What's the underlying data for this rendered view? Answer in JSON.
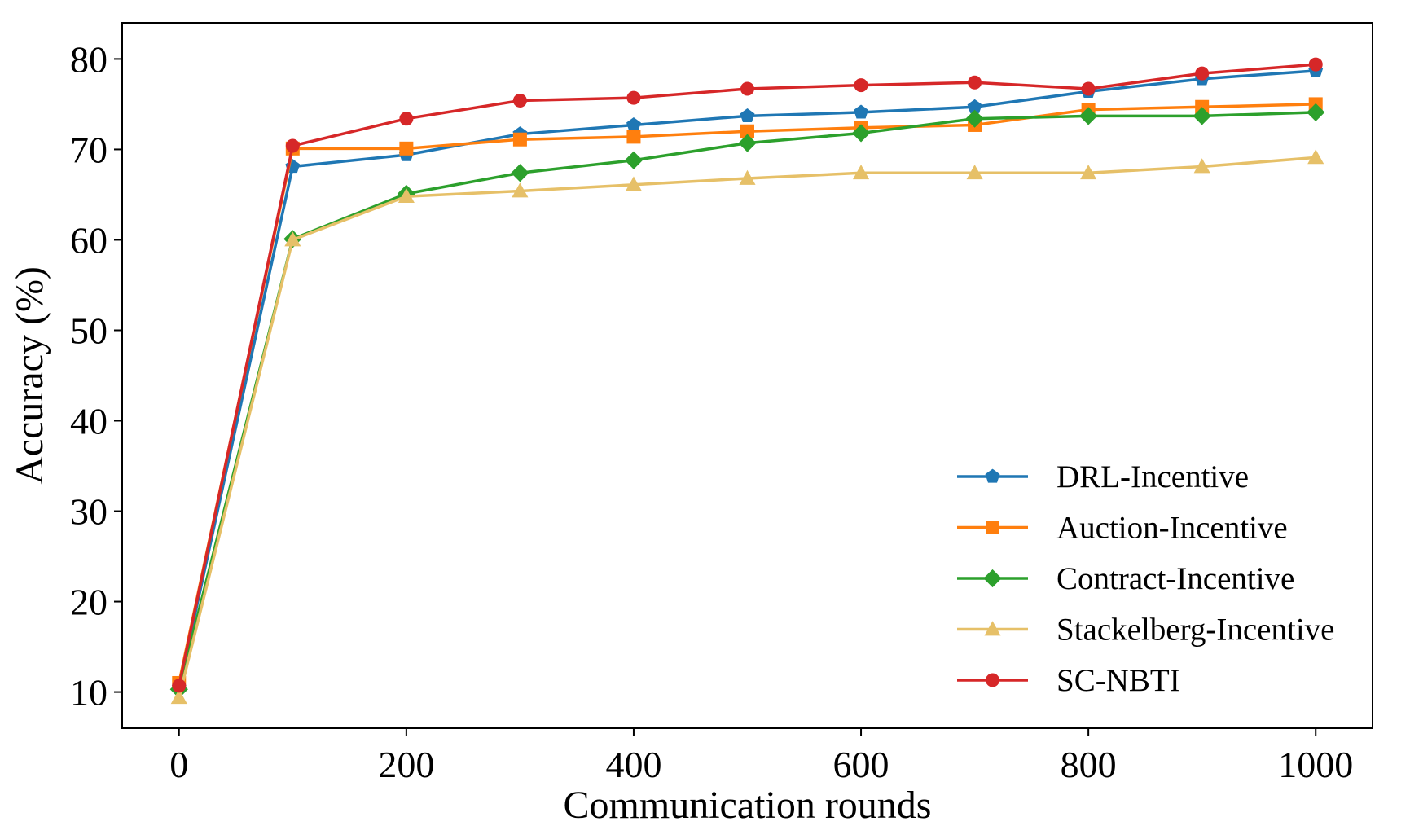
{
  "chart_data": {
    "type": "line",
    "title": "",
    "xlabel": "Communication rounds",
    "ylabel": "Accuracy (%)",
    "xlim": [
      -50,
      1050
    ],
    "ylim": [
      6,
      84
    ],
    "xticks": [
      0,
      200,
      400,
      600,
      800,
      1000
    ],
    "yticks": [
      10,
      20,
      30,
      40,
      50,
      60,
      70,
      80
    ],
    "xtick_labels": [
      "0",
      "200",
      "400",
      "600",
      "800",
      "1000"
    ],
    "ytick_labels": [
      "10",
      "20",
      "30",
      "40",
      "50",
      "60",
      "70",
      "80"
    ],
    "grid": false,
    "legend_position": "bottom-right",
    "x": [
      0,
      100,
      200,
      300,
      400,
      500,
      600,
      700,
      800,
      900,
      1000
    ],
    "series": [
      {
        "name": "DRL-Incentive",
        "color": "#1f77b4",
        "marker": "pentagon",
        "values": [
          10.5,
          68.1,
          69.4,
          71.7,
          72.7,
          73.7,
          74.1,
          74.7,
          76.4,
          77.8,
          78.7
        ]
      },
      {
        "name": "Auction-Incentive",
        "color": "#ff7f0e",
        "marker": "square",
        "values": [
          11.0,
          70.1,
          70.1,
          71.1,
          71.4,
          72.0,
          72.4,
          72.7,
          74.4,
          74.7,
          75.0
        ]
      },
      {
        "name": "Contract-Incentive",
        "color": "#2ca02c",
        "marker": "diamond",
        "values": [
          10.3,
          60.1,
          65.1,
          67.4,
          68.8,
          70.7,
          71.8,
          73.4,
          73.7,
          73.7,
          74.1
        ]
      },
      {
        "name": "Stackelberg-Incentive",
        "color": "#e6c068",
        "marker": "triangle",
        "values": [
          9.4,
          60.0,
          64.8,
          65.4,
          66.1,
          66.8,
          67.4,
          67.4,
          67.4,
          68.1,
          69.1
        ]
      },
      {
        "name": "SC-NBTI",
        "color": "#d62728",
        "marker": "circle",
        "values": [
          10.7,
          70.4,
          73.4,
          75.4,
          75.7,
          76.7,
          77.1,
          77.4,
          76.7,
          78.4,
          79.4
        ]
      }
    ]
  }
}
